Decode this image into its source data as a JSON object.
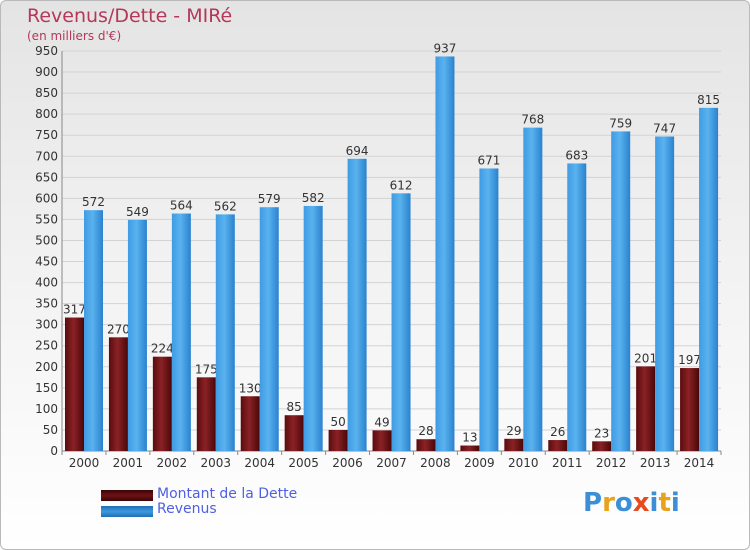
{
  "header": {
    "title": "Revenus/Dette - MIRé",
    "subtitle": "(en milliers d'€)"
  },
  "legend": [
    {
      "label": "Montant de la Dette",
      "color": "#6e1114"
    },
    {
      "label": "Revenus",
      "color": "#3d99e0"
    }
  ],
  "logo": {
    "text": "Proxiti"
  },
  "colors": {
    "title": "#b5375a",
    "dette": "#6e1114",
    "revenus": "#3d99e0",
    "legend_text": "#4f5fe0"
  },
  "chart_data": {
    "type": "bar",
    "categories": [
      "2000",
      "2001",
      "2002",
      "2003",
      "2004",
      "2005",
      "2006",
      "2007",
      "2008",
      "2009",
      "2010",
      "2011",
      "2012",
      "2013",
      "2014"
    ],
    "series": [
      {
        "name": "Montant de la Dette",
        "values": [
          317,
          270,
          224,
          175,
          130,
          85,
          50,
          49,
          28,
          13,
          29,
          26,
          23,
          201,
          197
        ]
      },
      {
        "name": "Revenus",
        "values": [
          572,
          549,
          564,
          562,
          579,
          582,
          694,
          612,
          937,
          671,
          768,
          683,
          759,
          747,
          815
        ]
      }
    ],
    "title": "Revenus/Dette - MIRé",
    "ylim": [
      0,
      950
    ],
    "ytick_step": 50,
    "grid": true,
    "legend_position": "bottom-left"
  }
}
